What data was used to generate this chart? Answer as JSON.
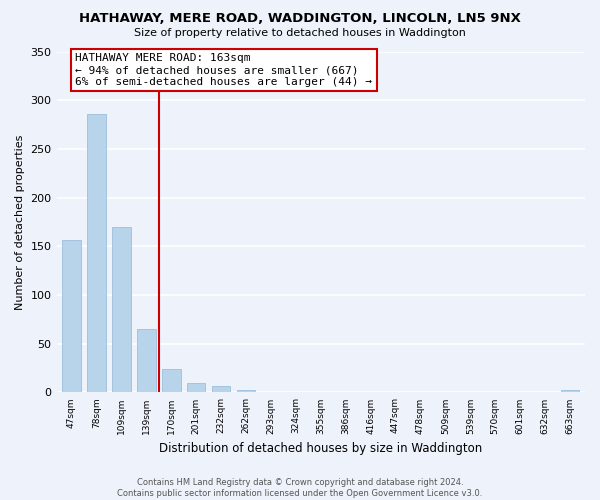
{
  "title": "HATHAWAY, MERE ROAD, WADDINGTON, LINCOLN, LN5 9NX",
  "subtitle": "Size of property relative to detached houses in Waddington",
  "xlabel": "Distribution of detached houses by size in Waddington",
  "ylabel": "Number of detached properties",
  "bar_labels": [
    "47sqm",
    "78sqm",
    "109sqm",
    "139sqm",
    "170sqm",
    "201sqm",
    "232sqm",
    "262sqm",
    "293sqm",
    "324sqm",
    "355sqm",
    "386sqm",
    "416sqm",
    "447sqm",
    "478sqm",
    "509sqm",
    "539sqm",
    "570sqm",
    "601sqm",
    "632sqm",
    "663sqm"
  ],
  "bar_values": [
    156,
    286,
    170,
    65,
    24,
    10,
    7,
    3,
    0,
    0,
    0,
    0,
    0,
    0,
    0,
    0,
    0,
    0,
    0,
    0,
    2
  ],
  "bar_color": "#b8d4ea",
  "vline_index": 4,
  "vline_color": "#cc0000",
  "ylim": [
    0,
    350
  ],
  "yticks": [
    0,
    50,
    100,
    150,
    200,
    250,
    300,
    350
  ],
  "annotation_title": "HATHAWAY MERE ROAD: 163sqm",
  "annotation_line1": "← 94% of detached houses are smaller (667)",
  "annotation_line2": "6% of semi-detached houses are larger (44) →",
  "annotation_box_color": "#ffffff",
  "annotation_box_edge": "#cc0000",
  "footer_line1": "Contains HM Land Registry data © Crown copyright and database right 2024.",
  "footer_line2": "Contains public sector information licensed under the Open Government Licence v3.0.",
  "bg_color": "#eef2fa"
}
